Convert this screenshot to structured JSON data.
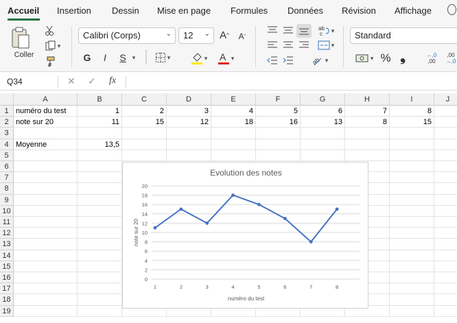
{
  "ribbon_tabs": [
    "Accueil",
    "Insertion",
    "Dessin",
    "Mise en page",
    "Formules",
    "Données",
    "Révision",
    "Affichage"
  ],
  "ribbon": {
    "paste_label": "Coller",
    "font_name": "Calibri (Corps)",
    "font_size": "12",
    "bold": "G",
    "italic": "I",
    "underline": "S",
    "number_format": "Standard",
    "percent": "%",
    "thousands": "❟",
    "increase_decimals": ",00",
    "decrease_decimals": ",0",
    "icons": [
      "paste-icon",
      "cut-icon",
      "copy-icon",
      "format-painter-icon",
      "grow-font-icon",
      "shrink-font-icon",
      "borders-icon",
      "fill-color-icon",
      "font-color-icon",
      "align-top-icon",
      "align-middle-icon",
      "align-bottom-icon",
      "wrap-text-icon",
      "align-left-icon",
      "align-center-icon",
      "align-right-icon",
      "merge-icon",
      "decrease-indent-icon",
      "increase-indent-icon",
      "orientation-icon",
      "currency-icon",
      "help-icon"
    ],
    "accent_color": "#1e7145",
    "fill_color_swatch": "#ffe800",
    "font_color_swatch": "#e02020"
  },
  "formula_bar": {
    "name_box": "Q34",
    "fx_label": "fx",
    "formula": ""
  },
  "grid": {
    "columns": [
      "A",
      "B",
      "C",
      "D",
      "E",
      "F",
      "G",
      "H",
      "I",
      "J"
    ],
    "rows": [
      "1",
      "2",
      "3",
      "4",
      "5",
      "6",
      "7",
      "8",
      "9",
      "10",
      "11",
      "12",
      "13",
      "14",
      "15",
      "16",
      "17",
      "18",
      "19"
    ],
    "cells": {
      "A1": "numéro du test",
      "B1": "1",
      "C1": "2",
      "D1": "3",
      "E1": "4",
      "F1": "5",
      "G1": "6",
      "H1": "7",
      "I1": "8",
      "A2": "note sur 20",
      "B2": "11",
      "C2": "15",
      "D2": "12",
      "E2": "18",
      "F2": "16",
      "G2": "13",
      "H2": "8",
      "I2": "15",
      "A4": "Moyenne",
      "B4": "13,5"
    }
  },
  "chart_data": {
    "type": "line",
    "title": "Evolution des notes",
    "xlabel": "numéro du test",
    "ylabel": "note sur 20",
    "categories": [
      "1",
      "2",
      "3",
      "4",
      "5",
      "6",
      "7",
      "8"
    ],
    "values": [
      11,
      15,
      12,
      18,
      16,
      13,
      8,
      15
    ],
    "ylim": [
      0,
      20
    ],
    "yticks": [
      "0",
      "2",
      "4",
      "6",
      "8",
      "10",
      "12",
      "14",
      "16",
      "18",
      "20"
    ],
    "grid": true,
    "legend": "none",
    "line_color": "#4472c4"
  }
}
